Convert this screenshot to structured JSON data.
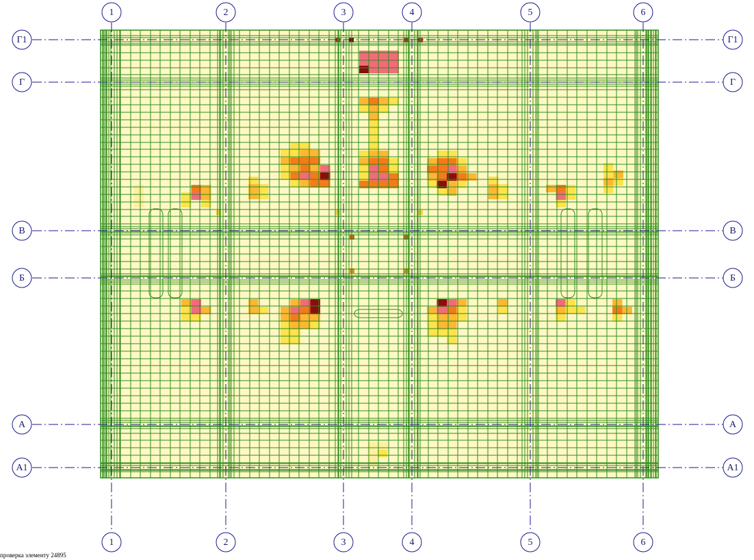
{
  "axes": {
    "columns": [
      "1",
      "2",
      "3",
      "4",
      "5",
      "6"
    ],
    "rows": [
      "Г1",
      "Г",
      "В",
      "Б",
      "А",
      "А1"
    ]
  },
  "footer": {
    "caption": "проверка элементу 24895"
  }
}
